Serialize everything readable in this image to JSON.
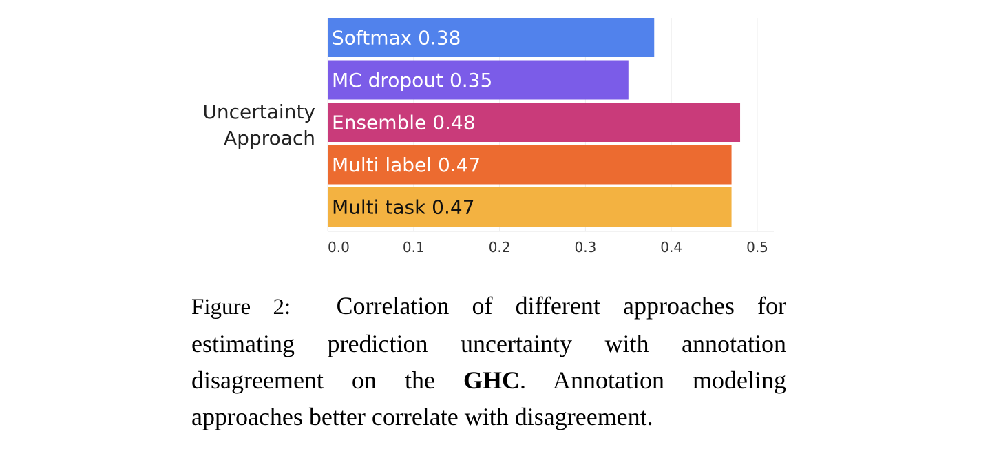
{
  "chart_data": {
    "type": "bar",
    "orientation": "horizontal",
    "ylabel": "Uncertainty Approach",
    "xlabel": "",
    "categories": [
      "Softmax",
      "MC dropout",
      "Ensemble",
      "Multi label",
      "Multi task"
    ],
    "values": [
      0.38,
      0.35,
      0.48,
      0.47,
      0.47
    ],
    "bar_labels": [
      "Softmax 0.38",
      "MC dropout 0.35",
      "Ensemble 0.48",
      "Multi label 0.47",
      "Multi task 0.47"
    ],
    "colors": [
      "#5182ec",
      "#7b5ce8",
      "#c93b7a",
      "#ec6b30",
      "#f3b241"
    ],
    "label_colors": [
      "#ffffff",
      "#ffffff",
      "#ffffff",
      "#ffffff",
      "#111111"
    ],
    "xlim": [
      0,
      0.5
    ],
    "xticks": [
      "0.0",
      "0.1",
      "0.2",
      "0.3",
      "0.4",
      "0.5"
    ],
    "grid": "vertical"
  },
  "caption": {
    "label": "Figure 2:",
    "lines": [
      "Correlation of different approaches for",
      "estimating prediction uncertainty with annotation",
      "disagreement on the",
      "GHC",
      ". Annotation modeling",
      "approaches better correlate with disagreement."
    ]
  }
}
